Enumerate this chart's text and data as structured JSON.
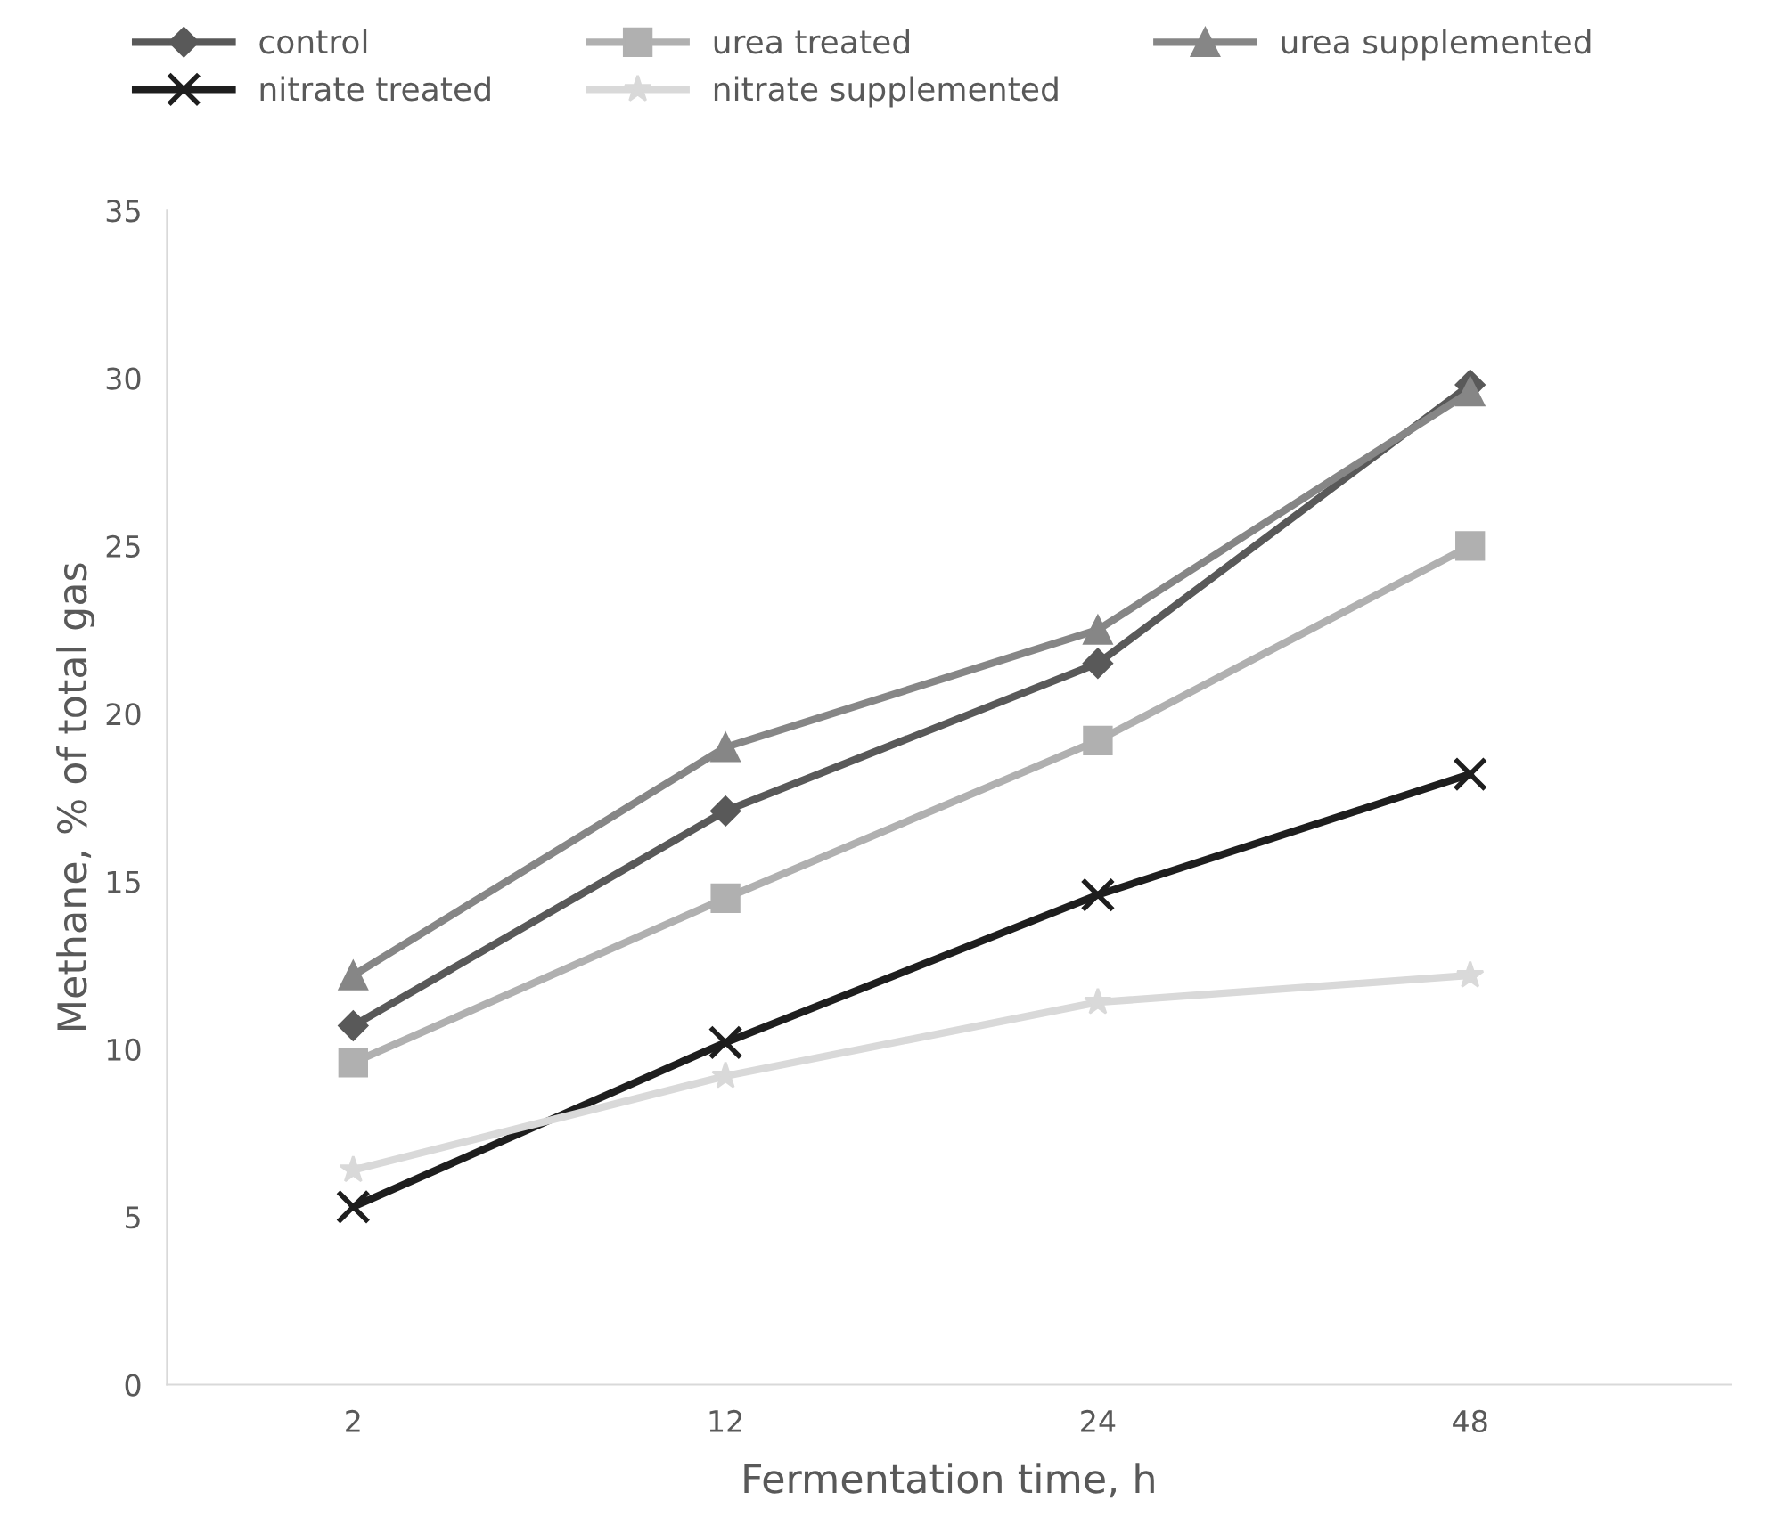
{
  "chart_data": {
    "type": "line",
    "xlabel": "Fermentation time, h",
    "ylabel": "Methane, % of total gas",
    "categories": [
      "2",
      "12",
      "24",
      "48"
    ],
    "series": [
      {
        "name": "control",
        "color": "#595959",
        "marker": "diamond",
        "values": [
          10.7,
          17.1,
          21.5,
          29.8
        ]
      },
      {
        "name": "urea treated",
        "color": "#b0b0b0",
        "marker": "square",
        "values": [
          9.6,
          14.5,
          19.2,
          25.0
        ]
      },
      {
        "name": "urea supplemented",
        "color": "#868686",
        "marker": "triangle",
        "values": [
          12.2,
          19.0,
          22.5,
          29.6
        ]
      },
      {
        "name": "nitrate treated",
        "color": "#1e1e1e",
        "marker": "cross",
        "values": [
          5.3,
          10.2,
          14.6,
          18.2
        ]
      },
      {
        "name": "nitrate supplemented",
        "color": "#d9d9d9",
        "marker": "star",
        "values": [
          6.4,
          9.2,
          11.4,
          12.2
        ]
      }
    ],
    "ylim": [
      0,
      35
    ],
    "yticks": [
      0,
      5,
      10,
      15,
      20,
      25,
      30,
      35
    ],
    "grid": false,
    "legend": "top",
    "line_style": "solid"
  }
}
